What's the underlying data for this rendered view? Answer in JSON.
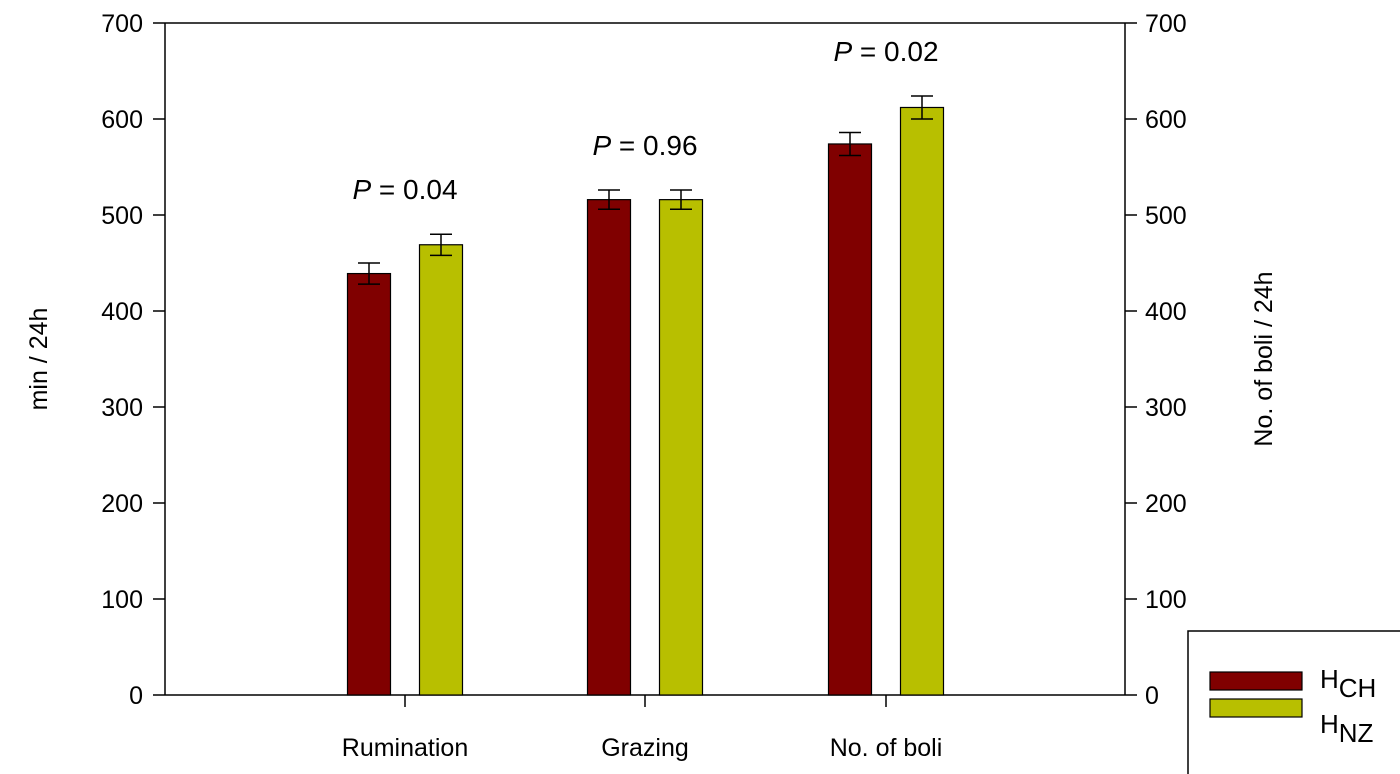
{
  "chart_data": {
    "type": "bar",
    "categories": [
      "Rumination",
      "Grazing",
      "No. of boli"
    ],
    "series": [
      {
        "name_main": "H",
        "name_sub": "CH",
        "color": "#800000",
        "values": [
          439,
          516,
          574
        ],
        "errors": [
          11,
          10,
          12
        ]
      },
      {
        "name_main": "H",
        "name_sub": "NZ",
        "color": "#b8bf00",
        "values": [
          469,
          516,
          612
        ],
        "errors": [
          11,
          10,
          12
        ]
      }
    ],
    "ylabel": "min / 24h",
    "ylabel_right": "No. of boli / 24h",
    "ylim": [
      0,
      700
    ],
    "yticks": [
      "0",
      "100",
      "200",
      "300",
      "400",
      "500",
      "600",
      "700"
    ],
    "annotations": [
      {
        "italic": "P",
        "text": " = 0.04"
      },
      {
        "italic": "P",
        "text": " = 0.96"
      },
      {
        "italic": "P",
        "text": " = 0.02"
      }
    ],
    "grid": false,
    "legend_position": "bottom-right"
  }
}
